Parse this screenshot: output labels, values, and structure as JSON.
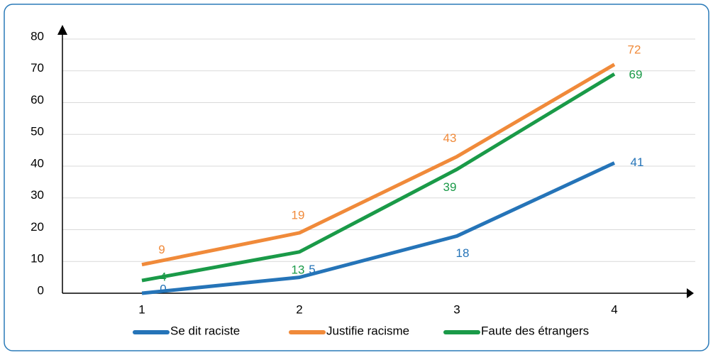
{
  "chart_data": {
    "type": "line",
    "categories": [
      1,
      2,
      3,
      4
    ],
    "series": [
      {
        "name": "Se dit raciste",
        "color": "#2574b8",
        "values": [
          0,
          5,
          18,
          41
        ]
      },
      {
        "name": "Justifie racisme",
        "color": "#f08a3a",
        "values": [
          9,
          19,
          43,
          72
        ]
      },
      {
        "name": "Faute des étrangers",
        "color": "#1a9a48",
        "values": [
          4,
          13,
          39,
          69
        ]
      }
    ],
    "ylim": [
      0,
      80
    ],
    "yticks": [
      0,
      10,
      20,
      30,
      40,
      50,
      60,
      70,
      80
    ],
    "grid": true,
    "legend": "bottom"
  }
}
